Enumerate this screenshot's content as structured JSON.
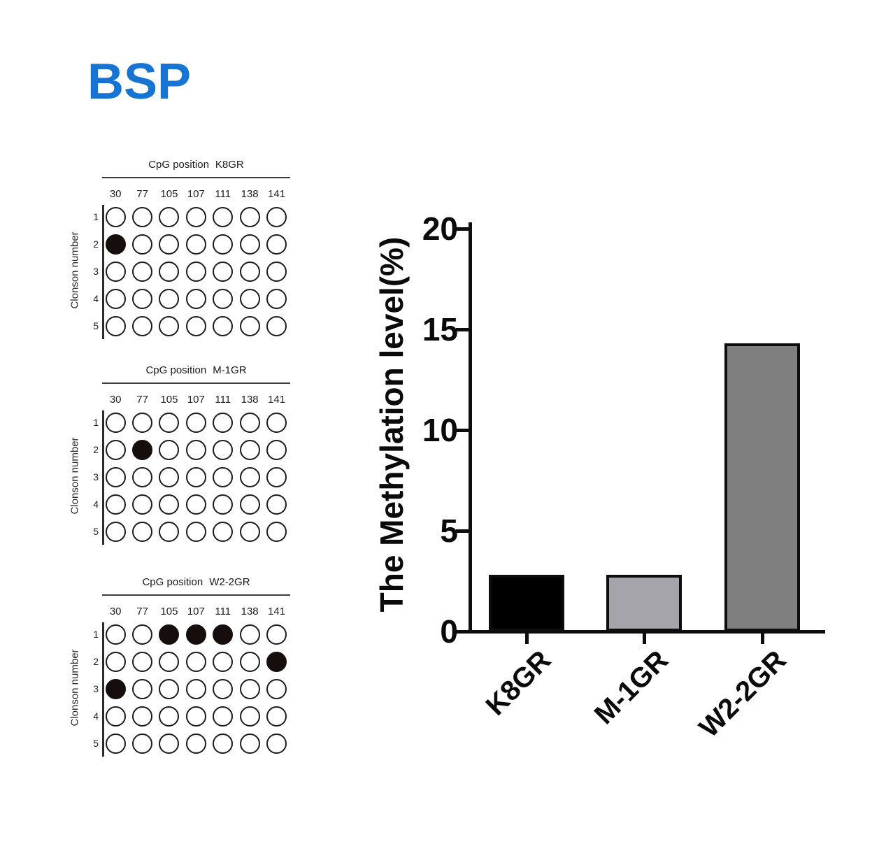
{
  "figure_title": "BSP",
  "panels": [
    {
      "title_prefix": "CpG position",
      "sample": "K8GR",
      "ylabel": "Clonson number",
      "positions": [
        "30",
        "77",
        "105",
        "107",
        "111",
        "138",
        "141"
      ],
      "clones": [
        "1",
        "2",
        "3",
        "4",
        "5"
      ],
      "filled": [
        [
          false,
          false,
          false,
          false,
          false,
          false,
          false
        ],
        [
          true,
          false,
          false,
          false,
          false,
          false,
          false
        ],
        [
          false,
          false,
          false,
          false,
          false,
          false,
          false
        ],
        [
          false,
          false,
          false,
          false,
          false,
          false,
          false
        ],
        [
          false,
          false,
          false,
          false,
          false,
          false,
          false
        ]
      ]
    },
    {
      "title_prefix": "CpG position",
      "sample": "M-1GR",
      "ylabel": "Clonson number",
      "positions": [
        "30",
        "77",
        "105",
        "107",
        "111",
        "138",
        "141"
      ],
      "clones": [
        "1",
        "2",
        "3",
        "4",
        "5"
      ],
      "filled": [
        [
          false,
          false,
          false,
          false,
          false,
          false,
          false
        ],
        [
          false,
          true,
          false,
          false,
          false,
          false,
          false
        ],
        [
          false,
          false,
          false,
          false,
          false,
          false,
          false
        ],
        [
          false,
          false,
          false,
          false,
          false,
          false,
          false
        ],
        [
          false,
          false,
          false,
          false,
          false,
          false,
          false
        ]
      ]
    },
    {
      "title_prefix": "CpG position",
      "sample": "W2-2GR",
      "ylabel": "Clonson number",
      "positions": [
        "30",
        "77",
        "105",
        "107",
        "111",
        "138",
        "141"
      ],
      "clones": [
        "1",
        "2",
        "3",
        "4",
        "5"
      ],
      "filled": [
        [
          false,
          false,
          true,
          true,
          true,
          false,
          false
        ],
        [
          false,
          false,
          false,
          false,
          false,
          false,
          true
        ],
        [
          true,
          false,
          false,
          false,
          false,
          false,
          false
        ],
        [
          false,
          false,
          false,
          false,
          false,
          false,
          false
        ],
        [
          false,
          false,
          false,
          false,
          false,
          false,
          false
        ]
      ]
    }
  ],
  "chart_data": {
    "type": "bar",
    "categories": [
      "K8GR",
      "M-1GR",
      "W2-2GR"
    ],
    "values": [
      2.8,
      2.8,
      14.3
    ],
    "bar_colors": [
      "#000000",
      "#a4a4aa",
      "#7f7f7f"
    ],
    "title": "",
    "xlabel": "",
    "ylabel": "The Methylation level(%)",
    "ylim": [
      0,
      20
    ],
    "yticks": [
      0,
      5,
      10,
      15,
      20
    ],
    "grid": false,
    "legend": "none"
  },
  "colors": {
    "figure_title": "#1774d2",
    "axis": "#0d0d0d",
    "methylated_dot": "#150e0c"
  }
}
